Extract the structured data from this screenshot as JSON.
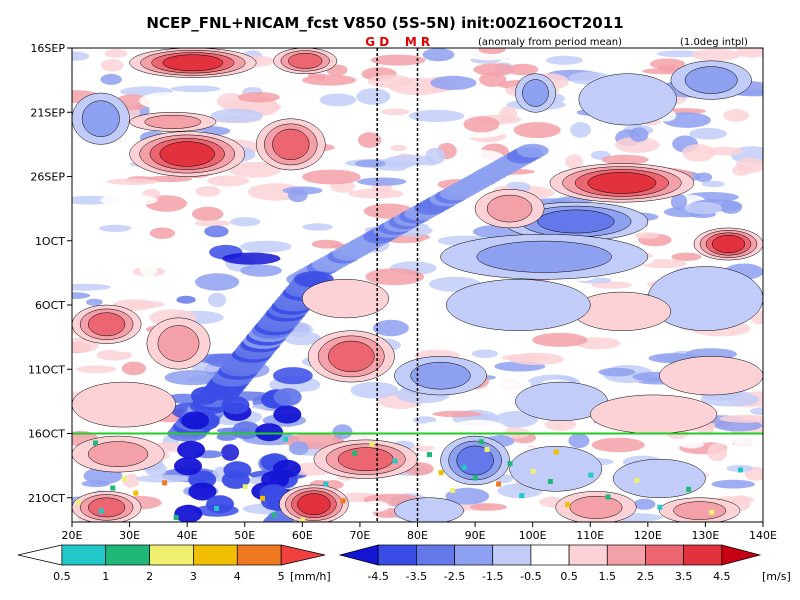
{
  "chart_data": {
    "type": "heatmap",
    "title": "NCEP_FNL+NICAM_fcst V850 (5S-5N) init:00Z16OCT2011",
    "subtitle_left": "(anomaly from period mean)",
    "subtitle_right": "(1.0deg intpl)",
    "site_markers": [
      {
        "label": "G D",
        "lon": 73,
        "color": "#e00000"
      },
      {
        "label": "M R",
        "lon": 80,
        "color": "#e00000"
      }
    ],
    "x_ticks": [
      {
        "lon": 20,
        "label": "20E"
      },
      {
        "lon": 30,
        "label": "30E"
      },
      {
        "lon": 40,
        "label": "40E"
      },
      {
        "lon": 50,
        "label": "50E"
      },
      {
        "lon": 60,
        "label": "60E"
      },
      {
        "lon": 70,
        "label": "70E"
      },
      {
        "lon": 80,
        "label": "80E"
      },
      {
        "lon": 90,
        "label": "90E"
      },
      {
        "lon": 100,
        "label": "100E"
      },
      {
        "lon": 110,
        "label": "110E"
      },
      {
        "lon": 120,
        "label": "120E"
      },
      {
        "lon": 130,
        "label": "130E"
      },
      {
        "lon": 140,
        "label": "140E"
      }
    ],
    "y_ticks": [
      {
        "day": 0,
        "label": "16SEP"
      },
      {
        "day": 5,
        "label": "21SEP"
      },
      {
        "day": 10,
        "label": "26SEP"
      },
      {
        "day": 15,
        "label": "1OCT"
      },
      {
        "day": 20,
        "label": "6OCT"
      },
      {
        "day": 25,
        "label": "11OCT"
      },
      {
        "day": 30,
        "label": "16OCT"
      },
      {
        "day": 35,
        "label": "21OCT"
      }
    ],
    "xlim": [
      20,
      140
    ],
    "ylim_days": [
      0,
      37
    ],
    "init_line_day": 30,
    "init_line_color": "#22cc22",
    "v850_colorbar": {
      "unit": "[m/s]",
      "labels": [
        "-4.5",
        "-3.5",
        "-2.5",
        "-1.5",
        "-0.5",
        "0.5",
        "1.5",
        "2.5",
        "3.5",
        "4.5"
      ],
      "colors": [
        "#1414d4",
        "#3a4ce6",
        "#6478ea",
        "#8ea0f0",
        "#c2ccf8",
        "#ffffff",
        "#fcd2d6",
        "#f4a0a8",
        "#ec6672",
        "#e2323e",
        "#c80014"
      ]
    },
    "rain_colorbar": {
      "unit": "[mm/h]",
      "labels": [
        "0.5",
        "1",
        "2",
        "3",
        "4",
        "5"
      ],
      "colors": [
        "#ffffff",
        "#20c8c8",
        "#20b878",
        "#f0f070",
        "#f0c000",
        "#f07820",
        "#f04040"
      ]
    },
    "features": [
      {
        "lon0": 30,
        "lon1": 52,
        "d0": 0,
        "d1": 2.3,
        "v": 4.2
      },
      {
        "lon0": 55,
        "lon1": 66,
        "d0": 0,
        "d1": 2.0,
        "v": 2.6
      },
      {
        "lon0": 30,
        "lon1": 45,
        "d0": 5,
        "d1": 6.5,
        "v": 2.2
      },
      {
        "lon0": 30,
        "lon1": 50,
        "d0": 6.5,
        "d1": 10,
        "v": 3.8
      },
      {
        "lon0": 52,
        "lon1": 64,
        "d0": 5.5,
        "d1": 9.5,
        "v": 2.6
      },
      {
        "lon0": 20,
        "lon1": 30,
        "d0": 3.5,
        "d1": 7.5,
        "v": -1.6
      },
      {
        "lon0": 97,
        "lon1": 104,
        "d0": 2,
        "d1": 5,
        "v": -2.2
      },
      {
        "lon0": 124,
        "lon1": 138,
        "d0": 1,
        "d1": 4,
        "v": -1.6
      },
      {
        "lon0": 108,
        "lon1": 125,
        "d0": 2,
        "d1": 6,
        "v": -0.8
      },
      {
        "lon0": 103,
        "lon1": 128,
        "d0": 9,
        "d1": 12,
        "v": 4.0
      },
      {
        "lon0": 95,
        "lon1": 120,
        "d0": 12,
        "d1": 15,
        "v": -3.0
      },
      {
        "lon0": 128,
        "lon1": 140,
        "d0": 14,
        "d1": 16.5,
        "v": 3.6
      },
      {
        "lon0": 84,
        "lon1": 120,
        "d0": 14.5,
        "d1": 18,
        "v": -1.8
      },
      {
        "lon0": 90,
        "lon1": 102,
        "d0": 11,
        "d1": 14,
        "v": 1.6
      },
      {
        "lon0": 120,
        "lon1": 140,
        "d0": 17,
        "d1": 22,
        "v": -1.4
      },
      {
        "lon0": 107,
        "lon1": 124,
        "d0": 19,
        "d1": 22,
        "v": 1.4
      },
      {
        "lon0": 20,
        "lon1": 32,
        "d0": 20,
        "d1": 23,
        "v": 2.6
      },
      {
        "lon0": 33,
        "lon1": 44,
        "d0": 21,
        "d1": 25,
        "v": 2.0
      },
      {
        "lon0": 61,
        "lon1": 76,
        "d0": 22,
        "d1": 26,
        "v": 2.8
      },
      {
        "lon0": 76,
        "lon1": 92,
        "d0": 24,
        "d1": 27,
        "v": -1.8
      },
      {
        "lon0": 85,
        "lon1": 110,
        "d0": 18,
        "d1": 22,
        "v": -1.2
      },
      {
        "lon0": 122,
        "lon1": 140,
        "d0": 24,
        "d1": 27,
        "v": 1.4
      },
      {
        "lon0": 60,
        "lon1": 75,
        "d0": 18,
        "d1": 21,
        "v": 1.2
      },
      {
        "lon0": 20,
        "lon1": 38,
        "d0": 26,
        "d1": 29.5,
        "v": 1.4
      },
      {
        "lon0": 97,
        "lon1": 113,
        "d0": 26,
        "d1": 29,
        "v": -1.4
      },
      {
        "lon0": 110,
        "lon1": 132,
        "d0": 27,
        "d1": 30,
        "v": 1.2
      },
      {
        "lon0": 20,
        "lon1": 36,
        "d0": 30.2,
        "d1": 33,
        "v": 2.4
      },
      {
        "lon0": 62,
        "lon1": 80,
        "d0": 30.5,
        "d1": 33.5,
        "v": 3.4
      },
      {
        "lon0": 56,
        "lon1": 68,
        "d0": 34,
        "d1": 37,
        "v": 4.3
      },
      {
        "lon0": 20,
        "lon1": 32,
        "d0": 34.5,
        "d1": 37,
        "v": 2.6
      },
      {
        "lon0": 84,
        "lon1": 96,
        "d0": 30.2,
        "d1": 34,
        "v": -3.2
      },
      {
        "lon0": 96,
        "lon1": 112,
        "d0": 31,
        "d1": 34.5,
        "v": -1.4
      },
      {
        "lon0": 104,
        "lon1": 118,
        "d0": 34.5,
        "d1": 37,
        "v": 1.6
      },
      {
        "lon0": 114,
        "lon1": 130,
        "d0": 32,
        "d1": 35,
        "v": -1.2
      },
      {
        "lon0": 122,
        "lon1": 136,
        "d0": 35,
        "d1": 37,
        "v": 2.2
      },
      {
        "lon0": 76,
        "lon1": 88,
        "d0": 35,
        "d1": 37,
        "v": -1.2
      }
    ],
    "rain_dots": [
      {
        "lon": 29,
        "day": 33.5,
        "mm": 3
      },
      {
        "lon": 27,
        "day": 34.2,
        "mm": 2
      },
      {
        "lon": 31,
        "day": 34.6,
        "mm": 4
      },
      {
        "lon": 36,
        "day": 33.8,
        "mm": 5
      },
      {
        "lon": 25,
        "day": 36.0,
        "mm": 1
      },
      {
        "lon": 21,
        "day": 35.3,
        "mm": 3
      },
      {
        "lon": 38,
        "day": 36.5,
        "mm": 2
      },
      {
        "lon": 45,
        "day": 35.8,
        "mm": 1
      },
      {
        "lon": 50,
        "day": 34.1,
        "mm": 3
      },
      {
        "lon": 53,
        "day": 35.0,
        "mm": 4
      },
      {
        "lon": 55,
        "day": 36.3,
        "mm": 2
      },
      {
        "lon": 60,
        "day": 36.7,
        "mm": 3
      },
      {
        "lon": 64,
        "day": 33.9,
        "mm": 1
      },
      {
        "lon": 67,
        "day": 35.2,
        "mm": 5
      },
      {
        "lon": 69,
        "day": 31.5,
        "mm": 2
      },
      {
        "lon": 72,
        "day": 30.8,
        "mm": 3
      },
      {
        "lon": 76,
        "day": 32.1,
        "mm": 1
      },
      {
        "lon": 82,
        "day": 31.6,
        "mm": 2
      },
      {
        "lon": 84,
        "day": 33.0,
        "mm": 4
      },
      {
        "lon": 86,
        "day": 34.4,
        "mm": 3
      },
      {
        "lon": 88,
        "day": 32.6,
        "mm": 1
      },
      {
        "lon": 90,
        "day": 33.4,
        "mm": 2
      },
      {
        "lon": 92,
        "day": 31.2,
        "mm": 3
      },
      {
        "lon": 94,
        "day": 33.9,
        "mm": 5
      },
      {
        "lon": 96,
        "day": 32.3,
        "mm": 2
      },
      {
        "lon": 98,
        "day": 34.8,
        "mm": 1
      },
      {
        "lon": 100,
        "day": 32.9,
        "mm": 3
      },
      {
        "lon": 103,
        "day": 33.7,
        "mm": 2
      },
      {
        "lon": 106,
        "day": 35.5,
        "mm": 4
      },
      {
        "lon": 110,
        "day": 33.2,
        "mm": 1
      },
      {
        "lon": 113,
        "day": 34.9,
        "mm": 2
      },
      {
        "lon": 118,
        "day": 33.6,
        "mm": 3
      },
      {
        "lon": 122,
        "day": 35.7,
        "mm": 1
      },
      {
        "lon": 127,
        "day": 34.3,
        "mm": 2
      },
      {
        "lon": 131,
        "day": 36.1,
        "mm": 3
      },
      {
        "lon": 136,
        "day": 32.8,
        "mm": 1
      },
      {
        "lon": 91,
        "day": 30.6,
        "mm": 2
      },
      {
        "lon": 104,
        "day": 31.4,
        "mm": 4
      },
      {
        "lon": 57,
        "day": 30.4,
        "mm": 1
      },
      {
        "lon": 24,
        "day": 30.7,
        "mm": 2
      }
    ]
  }
}
